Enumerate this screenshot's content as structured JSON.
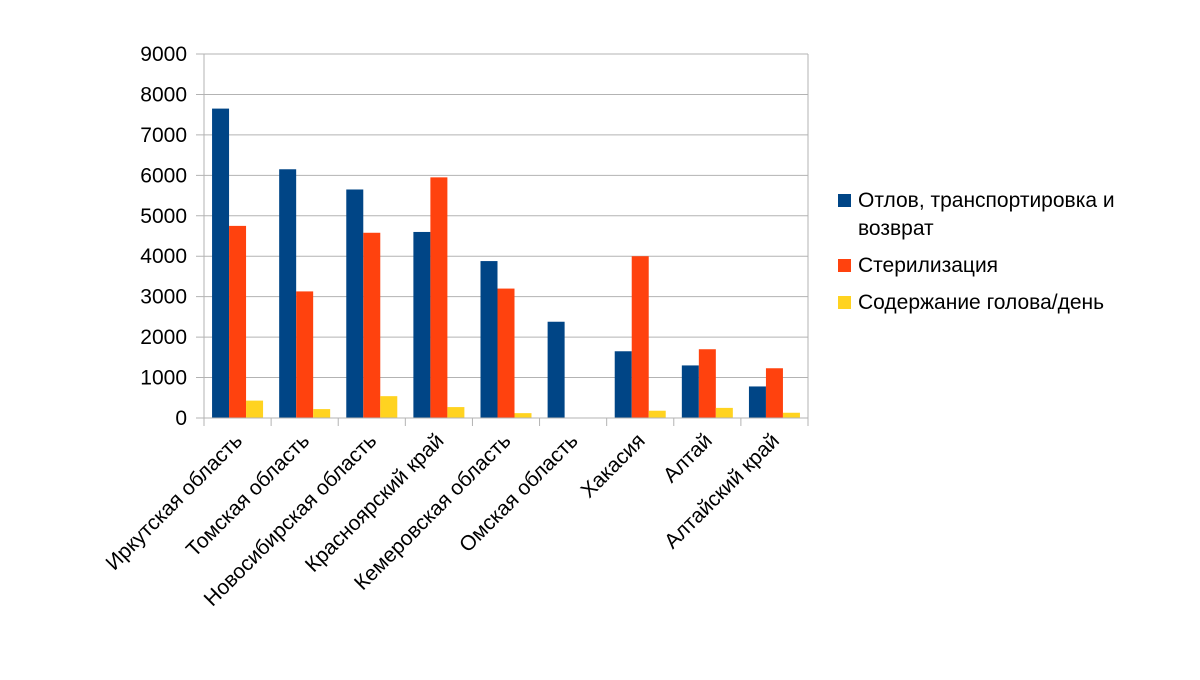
{
  "chart_data": {
    "type": "bar",
    "title": "",
    "xlabel": "",
    "ylabel": "",
    "ylim": [
      0,
      9000
    ],
    "yticks": [
      0,
      1000,
      2000,
      3000,
      4000,
      5000,
      6000,
      7000,
      8000,
      9000
    ],
    "grid": true,
    "legend_position": "right",
    "categories": [
      "Иркутская область",
      "Томская область",
      "Новосибирская область",
      "Красноярский край",
      "Кемеровская область",
      "Омская область",
      "Хакасия",
      "Алтай",
      "Алтайский край"
    ],
    "series": [
      {
        "name": "Отлов, транспортировка и возврат",
        "legend_lines": [
          "Отлов, транспортировка и",
          "возврат"
        ],
        "color": "#004586",
        "values": [
          7650,
          6150,
          5650,
          4600,
          3880,
          2380,
          1650,
          1300,
          780
        ]
      },
      {
        "name": "Стерилизация",
        "legend_lines": [
          "Стерилизация"
        ],
        "color": "#ff420e",
        "values": [
          4750,
          3130,
          4580,
          5950,
          3200,
          0,
          4000,
          1700,
          1230
        ]
      },
      {
        "name": "Содержание голова/день",
        "legend_lines": [
          "Содержание голова/день"
        ],
        "color": "#ffd320",
        "values": [
          430,
          220,
          540,
          270,
          120,
          0,
          180,
          250,
          130
        ]
      }
    ]
  }
}
